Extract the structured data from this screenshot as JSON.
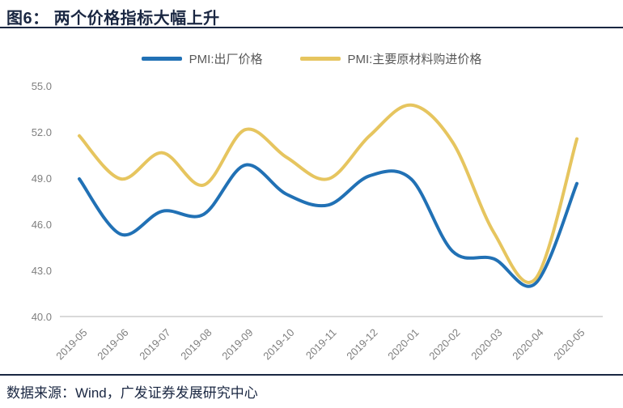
{
  "figure": {
    "title": "图6： 两个价格指标大幅上升",
    "source": "数据来源：Wind，广发证券发展研究中心"
  },
  "colors": {
    "accent_navy": "#1A2742",
    "series_blue": "#2171B5",
    "series_yellow": "#E6C55F",
    "axis_line": "#D9D9D9",
    "tick_label": "#7F7F7F",
    "legend_label": "#595959"
  },
  "chart_data": {
    "type": "line",
    "smooth": true,
    "title": "两个价格指标大幅上升",
    "xlabel": "",
    "ylabel": "",
    "legend_position": "top",
    "grid": false,
    "categories": [
      "2019-05",
      "2019-06",
      "2019-07",
      "2019-08",
      "2019-09",
      "2019-10",
      "2019-11",
      "2019-12",
      "2020-01",
      "2020-02",
      "2020-03",
      "2020-04",
      "2020-05"
    ],
    "series": [
      {
        "name": "PMI:出厂价格",
        "color": "#2171B5",
        "values": [
          49.0,
          45.4,
          46.9,
          46.7,
          49.9,
          48.0,
          47.3,
          49.2,
          49.0,
          44.3,
          43.8,
          42.2,
          48.7
        ]
      },
      {
        "name": "PMI:主要原材料购进价格",
        "color": "#E6C55F",
        "values": [
          51.8,
          49.0,
          50.7,
          48.6,
          52.2,
          50.4,
          49.0,
          51.8,
          53.8,
          51.4,
          45.5,
          42.5,
          51.6
        ]
      }
    ],
    "ylim": [
      40.0,
      55.0
    ],
    "ytick_values": [
      55,
      52,
      49,
      46,
      43,
      40
    ],
    "ytick_labels": [
      "55.0",
      "52.0",
      "49.0",
      "46.0",
      "43.0",
      "40.0"
    ]
  }
}
